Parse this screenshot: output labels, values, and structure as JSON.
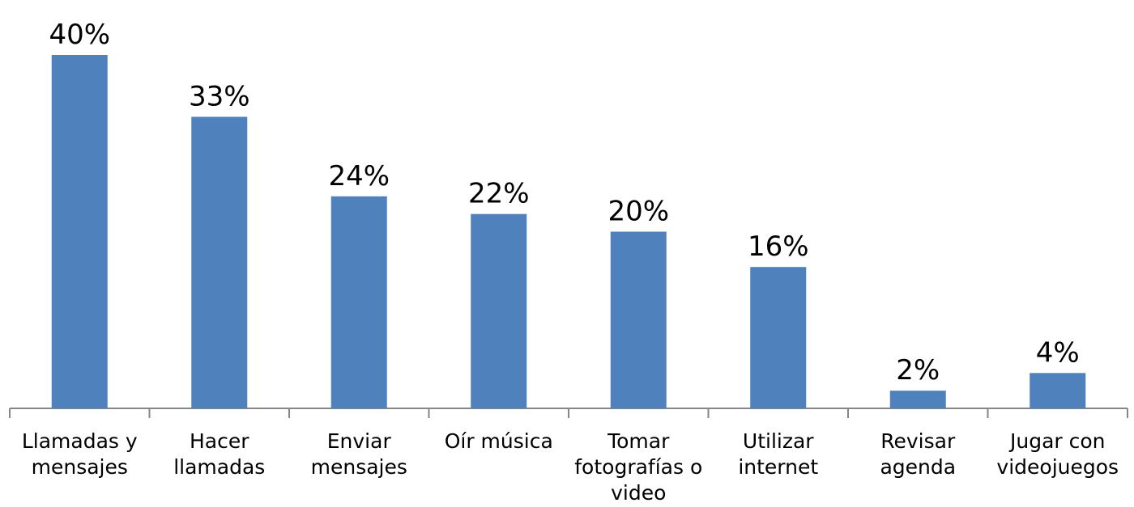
{
  "chart_data": {
    "type": "bar",
    "categories": [
      "Llamadas y mensajes",
      "Hacer llamadas",
      "Enviar mensajes",
      "Oír música",
      "Tomar fotografías o video",
      "Utilizar internet",
      "Revisar agenda",
      "Jugar con videojuegos"
    ],
    "values": [
      40,
      33,
      24,
      22,
      20,
      16,
      2,
      4
    ],
    "value_labels": [
      "40%",
      "33%",
      "24%",
      "22%",
      "20%",
      "16%",
      "2%",
      "4%"
    ],
    "color": "#4f81bd"
  }
}
